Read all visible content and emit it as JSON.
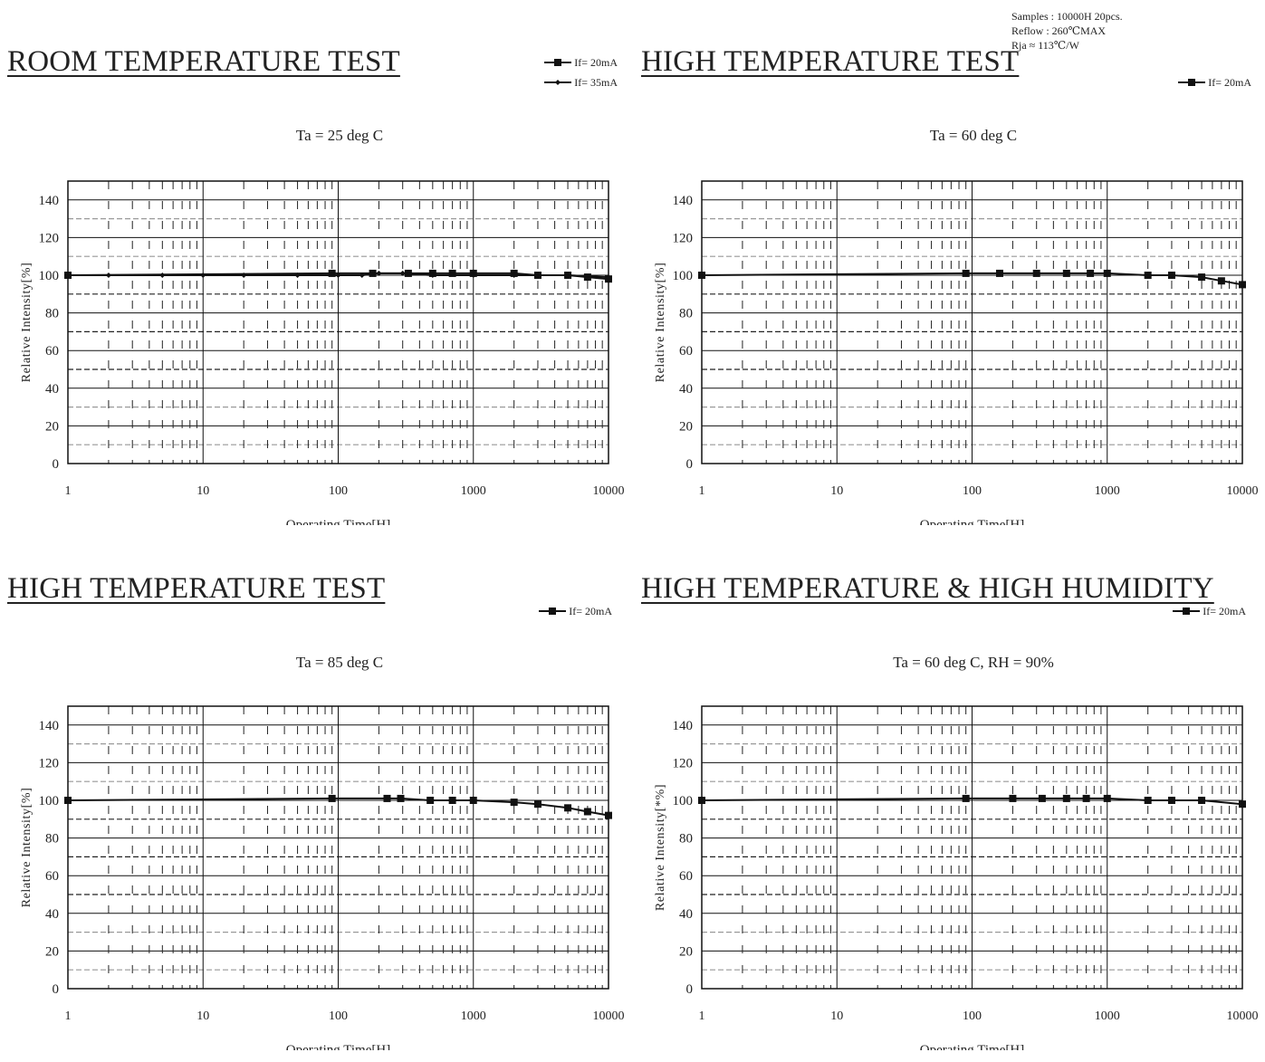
{
  "samples_note": [
    "Samples : 10000H 20pcs.",
    "Reflow : 260℃MAX",
    "Rja ≈ 113℃/W"
  ],
  "chart_data": [
    {
      "type": "line",
      "title": "ROOM TEMPERATURE TEST",
      "subtitle": "Ta = 25 deg C",
      "xlabel": "Operating Time[H]",
      "ylabel": "Relative Intensity[%]",
      "x_scale": "log",
      "xlim": [
        1,
        10000
      ],
      "ylim": [
        0,
        150
      ],
      "x_ticks": [
        "1",
        "10",
        "100",
        "1000",
        "10000"
      ],
      "y_ticks": [
        "0",
        "20",
        "40",
        "60",
        "80",
        "100",
        "120",
        "140"
      ],
      "legend": "top-right",
      "series": [
        {
          "name": "If= 20mA",
          "marker": "square",
          "color": "#111111",
          "x": [
            1,
            90,
            180,
            330,
            500,
            700,
            1000,
            2000,
            3000,
            5000,
            7000,
            10000
          ],
          "y": [
            100,
            101,
            101,
            101,
            101,
            101,
            101,
            101,
            100,
            100,
            99,
            98
          ]
        },
        {
          "name": "If= 35mA",
          "marker": "diamond",
          "color": "#111111",
          "x": [
            1,
            2,
            5,
            10,
            20,
            50,
            100,
            150,
            200,
            300,
            500,
            1000,
            2000,
            5000,
            10000
          ],
          "y": [
            100,
            100,
            100,
            100,
            100,
            100,
            100,
            100,
            101,
            101,
            100,
            100,
            100,
            100,
            99
          ]
        }
      ]
    },
    {
      "type": "line",
      "title": "HIGH TEMPERATURE TEST",
      "subtitle": "Ta = 60 deg C",
      "xlabel": "Operating Time[H]",
      "ylabel": "Relative Intensity[%]",
      "x_scale": "log",
      "xlim": [
        1,
        10000
      ],
      "ylim": [
        0,
        150
      ],
      "x_ticks": [
        "1",
        "10",
        "100",
        "1000",
        "10000"
      ],
      "y_ticks": [
        "0",
        "20",
        "40",
        "60",
        "80",
        "100",
        "120",
        "140"
      ],
      "legend": "top-right",
      "series": [
        {
          "name": "If= 20mA",
          "marker": "square",
          "color": "#111111",
          "x": [
            1,
            90,
            160,
            300,
            500,
            750,
            1000,
            2000,
            3000,
            5000,
            7000,
            10000
          ],
          "y": [
            100,
            101,
            101,
            101,
            101,
            101,
            101,
            100,
            100,
            99,
            97,
            95
          ]
        }
      ]
    },
    {
      "type": "line",
      "title": "HIGH TEMPERATURE TEST",
      "subtitle": "Ta = 85 deg C",
      "xlabel": "Operating Time[H]",
      "ylabel": "Relative Intensity[%]",
      "x_scale": "log",
      "xlim": [
        1,
        10000
      ],
      "ylim": [
        0,
        150
      ],
      "x_ticks": [
        "1",
        "10",
        "100",
        "1000",
        "10000"
      ],
      "y_ticks": [
        "0",
        "20",
        "40",
        "60",
        "80",
        "100",
        "120",
        "140"
      ],
      "legend": "top-right",
      "series": [
        {
          "name": "If= 20mA",
          "marker": "square",
          "color": "#111111",
          "x": [
            1,
            90,
            230,
            290,
            480,
            700,
            1000,
            2000,
            3000,
            5000,
            7000,
            10000
          ],
          "y": [
            100,
            101,
            101,
            101,
            100,
            100,
            100,
            99,
            98,
            96,
            94,
            92
          ]
        }
      ]
    },
    {
      "type": "line",
      "title": "HIGH TEMPERATURE & HIGH HUMIDITY",
      "subtitle": "Ta = 60 deg C, RH = 90%",
      "xlabel": "Operating Time[H]",
      "ylabel": "Relative Intensity[*%]",
      "x_scale": "log",
      "xlim": [
        1,
        10000
      ],
      "ylim": [
        0,
        150
      ],
      "x_ticks": [
        "1",
        "10",
        "100",
        "1000",
        "10000"
      ],
      "y_ticks": [
        "0",
        "20",
        "40",
        "60",
        "80",
        "100",
        "120",
        "140"
      ],
      "legend": "top-right",
      "series": [
        {
          "name": "If= 20mA",
          "marker": "square",
          "color": "#111111",
          "x": [
            1,
            90,
            200,
            330,
            500,
            700,
            1000,
            2000,
            3000,
            5000,
            10000
          ],
          "y": [
            100,
            101,
            101,
            101,
            101,
            101,
            101,
            100,
            100,
            100,
            98
          ]
        }
      ]
    }
  ]
}
